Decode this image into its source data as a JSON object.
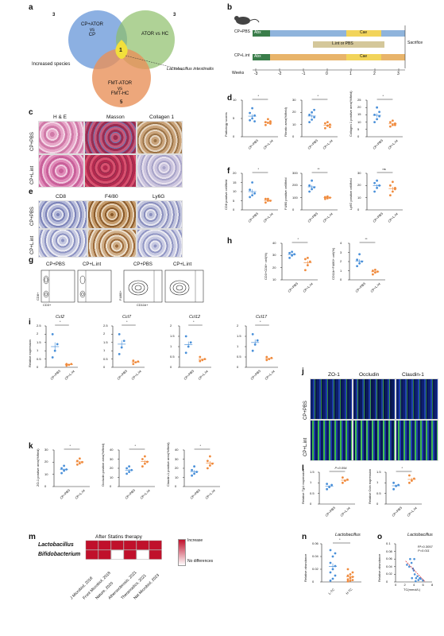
{
  "panels": {
    "a": "a",
    "b": "b",
    "c": "c",
    "d": "d",
    "e": "e",
    "f": "f",
    "g": "g",
    "h": "h",
    "i": "i",
    "j": "j",
    "k": "k",
    "l": "l",
    "m": "m",
    "n": "n",
    "o": "o"
  },
  "venn": {
    "left": "CP+ATOR\nvs\nCP",
    "right": "ATOR vs HC",
    "bottom": "FMT-ATOR\nvs\nFMT-HC",
    "n_left": "3",
    "n_right": "3",
    "n_bottom": "5",
    "n_center": "1",
    "increased": "Increased species",
    "species": "Lactobacillus intestinalis"
  },
  "scheme": {
    "row1": "CP+PBS",
    "row2": "CP+L.int",
    "abx": "Abx",
    "cae": "Cae",
    "lint_or_pbs": "L.int or PBS",
    "sacrifice": "Sacrifice",
    "weeks_label": "Weeks",
    "weeks": [
      "-3",
      "-2",
      "-1",
      "0",
      "1",
      "2",
      "3"
    ]
  },
  "groups": {
    "pbs": "CP+PBS",
    "lint": "CP+L.int"
  },
  "stains_c": [
    "H & E",
    "Masson",
    "Collagen 1"
  ],
  "stains_e": [
    "CD8",
    "F4/80",
    "Ly6G"
  ],
  "stains_j": [
    "ZO-1",
    "Occludin",
    "Claudin-1"
  ],
  "flow_axes": {
    "cd8": "CD8+",
    "cd3": "CD3+",
    "f480": "F4/80+",
    "cd11b": "CD11b+"
  },
  "colors": {
    "pbs": "#4a90d9",
    "lint": "#f08a3c",
    "he": "#c9679a",
    "masson": "#a8385b",
    "ihc": "#b98a5a",
    "venn_left": "#5b8fd6",
    "venn_right": "#8dbf6a",
    "venn_bottom": "#e8915a",
    "venn_center": "#f2e03b",
    "heat_on": "#c0102b"
  },
  "chart_data": [
    {
      "id": "d1",
      "type": "scatter",
      "ylabel": "Pathology scores",
      "categories": [
        "CP+PBS",
        "CP+L.int"
      ],
      "ylim": [
        0,
        10
      ],
      "yticks": [
        0,
        5,
        10
      ],
      "sig": "*",
      "series": [
        {
          "name": "CP+PBS",
          "values": [
            4.5,
            5.0,
            5.8,
            6.5,
            7.8,
            4.2
          ]
        },
        {
          "name": "CP+L.int",
          "values": [
            3.2,
            3.8,
            4.2,
            4.0,
            4.8,
            3.6
          ]
        }
      ]
    },
    {
      "id": "d2",
      "type": "scatter",
      "ylabel": "Fibrotic area(%/field)",
      "categories": [
        "CP+PBS",
        "CP+L.int"
      ],
      "ylim": [
        0,
        30
      ],
      "yticks": [
        0,
        10,
        20,
        30
      ],
      "sig": "*",
      "series": [
        {
          "name": "CP+PBS",
          "values": [
            12,
            14,
            16,
            18,
            20,
            22
          ]
        },
        {
          "name": "CP+L.int",
          "values": [
            7,
            9,
            10,
            11,
            12,
            8
          ]
        }
      ]
    },
    {
      "id": "d3",
      "type": "scatter",
      "ylabel": "Collagen 1 positive area(%/field)",
      "categories": [
        "CP+PBS",
        "CP+L.int"
      ],
      "ylim": [
        0,
        25
      ],
      "yticks": [
        0,
        5,
        10,
        15,
        20,
        25
      ],
      "sig": "*",
      "series": [
        {
          "name": "CP+PBS",
          "values": [
            10,
            12,
            14,
            15,
            20,
            17
          ]
        },
        {
          "name": "CP+L.int",
          "values": [
            7,
            8,
            9,
            10,
            11,
            8
          ]
        }
      ]
    },
    {
      "id": "f1",
      "type": "scatter",
      "ylabel": "CD8 positive cell/field",
      "categories": [
        "CP+PBS",
        "CP+L.int"
      ],
      "ylim": [
        0,
        20
      ],
      "yticks": [
        0,
        5,
        10,
        15,
        20
      ],
      "sig": "*",
      "series": [
        {
          "name": "CP+PBS",
          "values": [
            7,
            8,
            9,
            11,
            15
          ]
        },
        {
          "name": "CP+L.int",
          "values": [
            4,
            5,
            5,
            6,
            6
          ]
        }
      ]
    },
    {
      "id": "f2",
      "type": "scatter",
      "ylabel": "F4/80 positive cell/field",
      "categories": [
        "CP+PBS",
        "CP+L.int"
      ],
      "ylim": [
        0,
        300
      ],
      "yticks": [
        0,
        100,
        200,
        300
      ],
      "sig": "**",
      "series": [
        {
          "name": "CP+PBS",
          "values": [
            150,
            170,
            185,
            200,
            240
          ]
        },
        {
          "name": "CP+L.int",
          "values": [
            90,
            95,
            100,
            105,
            110
          ]
        }
      ]
    },
    {
      "id": "f3",
      "type": "scatter",
      "ylabel": "Ly6G positive cell/field",
      "categories": [
        "CP+PBS",
        "CP+L.int"
      ],
      "ylim": [
        0,
        30
      ],
      "yticks": [
        0,
        10,
        20,
        30
      ],
      "sig": "ns",
      "series": [
        {
          "name": "CP+PBS",
          "values": [
            15,
            18,
            20,
            22,
            24
          ]
        },
        {
          "name": "CP+L.int",
          "values": [
            12,
            15,
            17,
            20,
            23,
            18
          ]
        }
      ]
    },
    {
      "id": "h1",
      "type": "scatter",
      "ylabel": "CD3+CD8+ cell(%)",
      "categories": [
        "CP+PBS",
        "CP+L.int"
      ],
      "ylim": [
        10,
        40
      ],
      "yticks": [
        10,
        20,
        30,
        40
      ],
      "sig": "*",
      "series": [
        {
          "name": "CP+PBS",
          "values": [
            28,
            30,
            31,
            32,
            33
          ]
        },
        {
          "name": "CP+L.int",
          "values": [
            18,
            22,
            25,
            27,
            28
          ]
        }
      ]
    },
    {
      "id": "h2",
      "type": "scatter",
      "ylabel": "CD11b+F4/80+ cell(%)",
      "categories": [
        "CP+PBS",
        "CP+L.int"
      ],
      "ylim": [
        0,
        4
      ],
      "yticks": [
        0,
        1,
        2,
        3,
        4
      ],
      "sig": "**",
      "series": [
        {
          "name": "CP+PBS",
          "values": [
            1.5,
            1.8,
            2.0,
            2.2,
            2.8
          ]
        },
        {
          "name": "CP+L.int",
          "values": [
            0.6,
            0.8,
            0.9,
            1.0,
            1.1
          ]
        }
      ]
    },
    {
      "id": "i1",
      "type": "scatter",
      "title": "Ccl2",
      "ylabel": "Relative expression",
      "categories": [
        "CP+PBS",
        "CP+L.int"
      ],
      "ylim": [
        0,
        2.5
      ],
      "yticks": [
        0,
        0.5,
        1,
        1.5,
        2,
        2.5
      ],
      "sig": "*",
      "series": [
        {
          "name": "CP+PBS",
          "values": [
            0.6,
            1.0,
            1.4,
            2.0
          ]
        },
        {
          "name": "CP+L.int",
          "values": [
            0.1,
            0.15,
            0.2,
            0.2
          ]
        }
      ]
    },
    {
      "id": "i2",
      "type": "scatter",
      "title": "Ccl7",
      "categories": [
        "CP+PBS",
        "CP+L.int"
      ],
      "ylim": [
        0,
        2.5
      ],
      "yticks": [
        0,
        0.5,
        1,
        1.5,
        2,
        2.5
      ],
      "sig": "*",
      "series": [
        {
          "name": "CP+PBS",
          "values": [
            0.8,
            1.2,
            1.6,
            2.0
          ]
        },
        {
          "name": "CP+L.int",
          "values": [
            0.2,
            0.3,
            0.35,
            0.4
          ]
        }
      ]
    },
    {
      "id": "i3",
      "type": "scatter",
      "title": "Ccl12",
      "categories": [
        "CP+PBS",
        "CP+L.int"
      ],
      "ylim": [
        0,
        2.0
      ],
      "yticks": [
        0,
        0.5,
        1,
        1.5,
        2
      ],
      "sig": "*",
      "series": [
        {
          "name": "CP+PBS",
          "values": [
            0.7,
            1.0,
            1.2,
            1.5
          ]
        },
        {
          "name": "CP+L.int",
          "values": [
            0.3,
            0.35,
            0.4,
            0.5
          ]
        }
      ]
    },
    {
      "id": "i4",
      "type": "scatter",
      "title": "Ccl17",
      "categories": [
        "CP+PBS",
        "CP+L.int"
      ],
      "ylim": [
        0,
        2.0
      ],
      "yticks": [
        0,
        0.5,
        1,
        1.5,
        2
      ],
      "sig": "*",
      "series": [
        {
          "name": "CP+PBS",
          "values": [
            0.8,
            1.1,
            1.3,
            1.6
          ]
        },
        {
          "name": "CP+L.int",
          "values": [
            0.35,
            0.4,
            0.45,
            0.5
          ]
        }
      ]
    },
    {
      "id": "k1",
      "type": "scatter",
      "ylabel": "ZO-1 positive area(%/field)",
      "categories": [
        "CP+PBS",
        "CP+L.int"
      ],
      "ylim": [
        0,
        30
      ],
      "yticks": [
        0,
        10,
        20,
        30
      ],
      "sig": "*",
      "series": [
        {
          "name": "CP+PBS",
          "values": [
            11,
            13,
            14,
            15,
            17
          ]
        },
        {
          "name": "CP+L.int",
          "values": [
            18,
            19,
            20,
            21,
            23
          ]
        }
      ]
    },
    {
      "id": "k2",
      "type": "scatter",
      "ylabel": "Occludin positive area(%/field)",
      "categories": [
        "CP+PBS",
        "CP+L.int"
      ],
      "ylim": [
        0,
        40
      ],
      "yticks": [
        0,
        10,
        20,
        30,
        40
      ],
      "sig": "*",
      "series": [
        {
          "name": "CP+PBS",
          "values": [
            14,
            16,
            18,
            20,
            22
          ]
        },
        {
          "name": "CP+L.int",
          "values": [
            22,
            25,
            27,
            30,
            33
          ]
        }
      ]
    },
    {
      "id": "k3",
      "type": "scatter",
      "ylabel": "Claudin-1 positive area(%/field)",
      "categories": [
        "CP+PBS",
        "CP+L.int"
      ],
      "ylim": [
        0,
        40
      ],
      "yticks": [
        0,
        10,
        20,
        30,
        40
      ],
      "sig": "*",
      "series": [
        {
          "name": "CP+PBS",
          "values": [
            12,
            14,
            16,
            18,
            22
          ]
        },
        {
          "name": "CP+L.int",
          "values": [
            20,
            23,
            25,
            28,
            33
          ]
        }
      ]
    },
    {
      "id": "l1",
      "type": "scatter",
      "ylabel": "Relative Tjp1 expression",
      "categories": [
        "CP+PBS",
        "CP+L.int"
      ],
      "ylim": [
        0,
        1.5
      ],
      "yticks": [
        0,
        0.5,
        1,
        1.5
      ],
      "sig": "P=0.054",
      "series": [
        {
          "name": "CP+PBS",
          "values": [
            0.7,
            0.8,
            0.9,
            0.95
          ]
        },
        {
          "name": "CP+L.int",
          "values": [
            1.0,
            1.1,
            1.15,
            1.25
          ]
        }
      ]
    },
    {
      "id": "l2",
      "type": "scatter",
      "ylabel": "Relative Ocln expression",
      "categories": [
        "CP+PBS",
        "CP+L.int"
      ],
      "ylim": [
        0,
        1.5
      ],
      "yticks": [
        0,
        0.5,
        1,
        1.5
      ],
      "sig": "*",
      "series": [
        {
          "name": "CP+PBS",
          "values": [
            0.7,
            0.85,
            0.9,
            1.0
          ]
        },
        {
          "name": "CP+L.int",
          "values": [
            1.0,
            1.1,
            1.2,
            1.35
          ]
        }
      ]
    },
    {
      "id": "m",
      "type": "heatmap",
      "title": "After Statins therapy",
      "rows": [
        "Lactobacillus",
        "Bifidobacterium"
      ],
      "cols": [
        "J Microbiol, 2018",
        "Front Microbiol, 2018",
        "Nature, 2020",
        "Atherosclerosis, 2021",
        "Theranostics, 2021",
        "Nat Microbiol, 2023"
      ],
      "values": [
        [
          1,
          1,
          1,
          1,
          1,
          1
        ],
        [
          1,
          1,
          0,
          1,
          0,
          1
        ]
      ],
      "legend": [
        "Increase",
        "No differences"
      ]
    },
    {
      "id": "n",
      "type": "scatter",
      "title": "Lactobacillus",
      "ylabel": "Relative abundance",
      "categories": [
        "L-TC",
        "H-TC"
      ],
      "ylim": [
        0,
        0.06
      ],
      "yticks": [
        0,
        0.02,
        0.04,
        0.06
      ],
      "sig": "*",
      "series": [
        {
          "name": "L-TC",
          "values": [
            0.002,
            0.005,
            0.01,
            0.015,
            0.02,
            0.025,
            0.03,
            0.04,
            0.045,
            0.05
          ]
        },
        {
          "name": "H-TC",
          "values": [
            0.001,
            0.002,
            0.003,
            0.004,
            0.006,
            0.008,
            0.01,
            0.012,
            0.015,
            0.02
          ]
        }
      ]
    },
    {
      "id": "o",
      "type": "scatter",
      "title": "Lactobacillus",
      "xlabel": "TC(mmol/L)",
      "ylabel": "Relative abundance",
      "xlim": [
        0,
        8
      ],
      "xticks": [
        0,
        2,
        4,
        6,
        8
      ],
      "ylim": [
        0,
        0.1
      ],
      "yticks": [
        0,
        0.02,
        0.04,
        0.06,
        0.08,
        0.1
      ],
      "annotation": "R²=0.3057\nP=0.011",
      "series": [
        {
          "name": "points",
          "x": [
            2.5,
            3,
            3.2,
            3.5,
            3.8,
            4,
            4.2,
            4.5,
            4.8,
            5,
            5.3,
            5.5,
            6,
            4.1,
            3.6,
            4.4
          ],
          "y": [
            0.045,
            0.04,
            0.06,
            0.05,
            0.035,
            0.03,
            0.02,
            0.01,
            0.015,
            0.005,
            0.01,
            0.008,
            0.004,
            0.06,
            0.01,
            0.002
          ]
        }
      ],
      "fit": {
        "x": [
          2.2,
          6.5
        ],
        "y": [
          0.055,
          0.0
        ]
      }
    }
  ]
}
